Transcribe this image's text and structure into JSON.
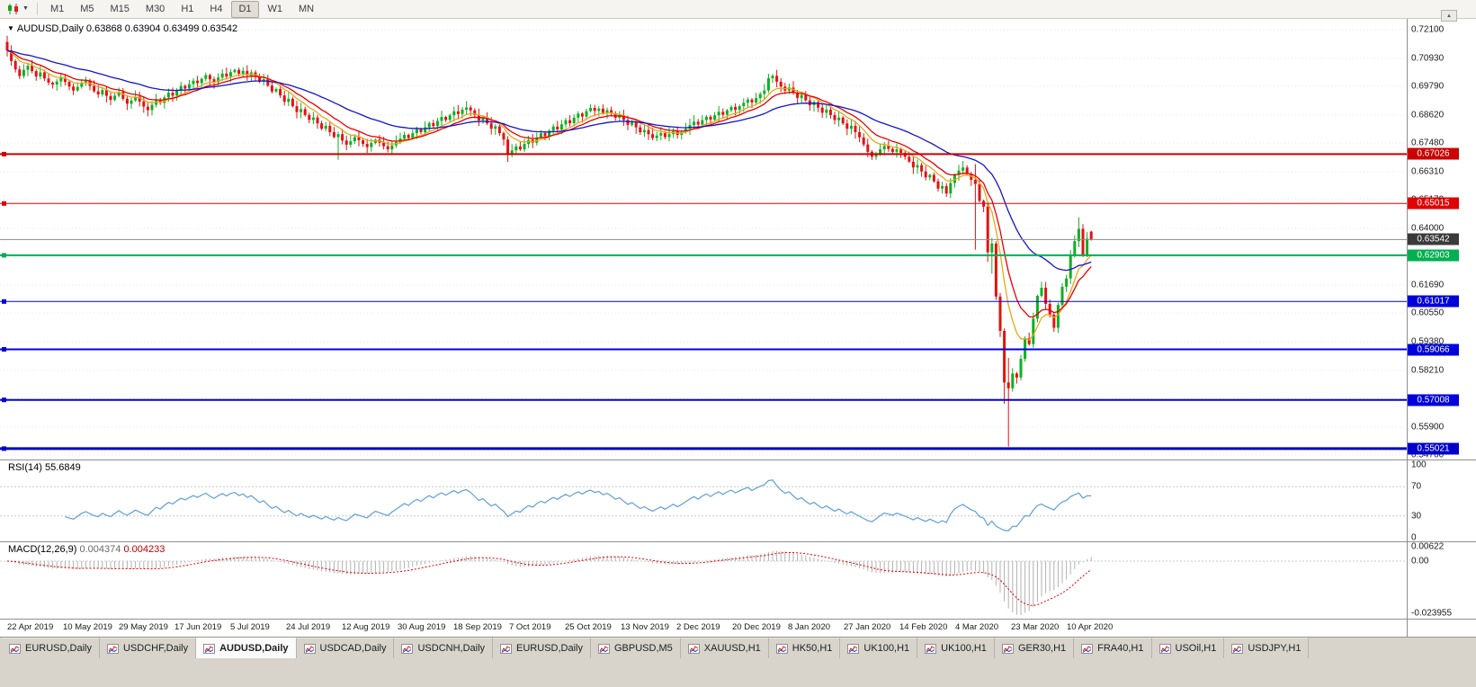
{
  "toolbar": {
    "timeframes": [
      {
        "label": "M1",
        "active": false
      },
      {
        "label": "M5",
        "active": false
      },
      {
        "label": "M15",
        "active": false
      },
      {
        "label": "M30",
        "active": false
      },
      {
        "label": "H1",
        "active": false
      },
      {
        "label": "H4",
        "active": false
      },
      {
        "label": "D1",
        "active": true
      },
      {
        "label": "W1",
        "active": false
      },
      {
        "label": "MN",
        "active": false
      }
    ]
  },
  "chart": {
    "marker": "▼",
    "title_line": "AUDUSD,Daily 0.63868 0.63904 0.63499 0.63542"
  },
  "tabs": [
    {
      "label": "EURUSD,Daily",
      "active": false
    },
    {
      "label": "USDCHF,Daily",
      "active": false
    },
    {
      "label": "AUDUSD,Daily",
      "active": true
    },
    {
      "label": "USDCAD,Daily",
      "active": false
    },
    {
      "label": "USDCNH,Daily",
      "active": false
    },
    {
      "label": "EURUSD,Daily",
      "active": false
    },
    {
      "label": "GBPUSD,M5",
      "active": false
    },
    {
      "label": "XAUUSD,H1",
      "active": false
    },
    {
      "label": "HK50,H1",
      "active": false
    },
    {
      "label": "UK100,H1",
      "active": false
    },
    {
      "label": "UK100,H1",
      "active": false
    },
    {
      "label": "GER30,H1",
      "active": false
    },
    {
      "label": "FRA40,H1",
      "active": false
    },
    {
      "label": "USOil,H1",
      "active": false
    },
    {
      "label": "USDJPY,H1",
      "active": false
    }
  ],
  "chart_data": {
    "type": "candlestick",
    "symbol": "AUDUSD",
    "timeframe": "Daily",
    "last_ohlc": {
      "open": "0.63868",
      "high": "0.63904",
      "low": "0.63499",
      "close": "0.63542"
    },
    "candle_up_color": "#0faf22",
    "candle_down_color": "#e41111",
    "first_open": 0.716,
    "closes": [
      0.7125,
      0.7082,
      0.7048,
      0.7021,
      0.7046,
      0.7063,
      0.7041,
      0.7019,
      0.7036,
      0.7011,
      0.6994,
      0.6986,
      0.6999,
      0.7014,
      0.6997,
      0.6978,
      0.6962,
      0.6977,
      0.6994,
      0.7003,
      0.6981,
      0.6959,
      0.6946,
      0.6964,
      0.694,
      0.6924,
      0.6941,
      0.6956,
      0.6928,
      0.6908,
      0.6921,
      0.6936,
      0.6917,
      0.6896,
      0.6882,
      0.6904,
      0.6926,
      0.6912,
      0.6934,
      0.6953,
      0.6941,
      0.6962,
      0.6981,
      0.697,
      0.6988,
      0.7002,
      0.6992,
      0.701,
      0.7025,
      0.7008,
      0.6996,
      0.7015,
      0.7031,
      0.7019,
      0.7037,
      0.7046,
      0.703,
      0.7042,
      0.7024,
      0.7036,
      0.7018,
      0.6998,
      0.7008,
      0.6982,
      0.6958,
      0.6968,
      0.6942,
      0.6916,
      0.6928,
      0.6898,
      0.6874,
      0.6886,
      0.6862,
      0.6842,
      0.6852,
      0.6828,
      0.6806,
      0.6818,
      0.6792,
      0.6772,
      0.6784,
      0.6758,
      0.6741,
      0.6755,
      0.6772,
      0.6759,
      0.6744,
      0.6731,
      0.6748,
      0.6762,
      0.6749,
      0.6735,
      0.6722,
      0.6738,
      0.6752,
      0.6766,
      0.6781,
      0.6768,
      0.6788,
      0.6804,
      0.6792,
      0.6812,
      0.6829,
      0.6817,
      0.6838,
      0.6854,
      0.6842,
      0.6861,
      0.6877,
      0.6866,
      0.6884,
      0.6893,
      0.6881,
      0.6862,
      0.684,
      0.6851,
      0.6828,
      0.6806,
      0.6816,
      0.6788,
      0.6762,
      0.6702,
      0.6718,
      0.6734,
      0.6722,
      0.6744,
      0.6761,
      0.6749,
      0.6771,
      0.6788,
      0.6776,
      0.6798,
      0.6815,
      0.6803,
      0.6824,
      0.6841,
      0.6829,
      0.6851,
      0.6868,
      0.6856,
      0.6878,
      0.6891,
      0.6879,
      0.6888,
      0.6871,
      0.6882,
      0.6869,
      0.6851,
      0.6861,
      0.6842,
      0.6822,
      0.6832,
      0.6812,
      0.6792,
      0.6801,
      0.6784,
      0.6768,
      0.6778,
      0.6788,
      0.6772,
      0.6784,
      0.6796,
      0.6781,
      0.6792,
      0.6806,
      0.6821,
      0.6835,
      0.6823,
      0.6841,
      0.6855,
      0.6843,
      0.6861,
      0.6875,
      0.6863,
      0.6881,
      0.6895,
      0.6883,
      0.6898,
      0.6912,
      0.6925,
      0.6913,
      0.6931,
      0.6948,
      0.6962,
      0.7012,
      0.7022,
      0.6998,
      0.6978,
      0.6962,
      0.6974,
      0.6952,
      0.6932,
      0.6944,
      0.6922,
      0.6902,
      0.6914,
      0.6892,
      0.6871,
      0.6884,
      0.6862,
      0.6841,
      0.6852,
      0.6828,
      0.6806,
      0.6818,
      0.6792,
      0.6771,
      0.6742,
      0.6712,
      0.6692,
      0.6706,
      0.6722,
      0.6736,
      0.6724,
      0.6712,
      0.6722,
      0.6708,
      0.6692,
      0.6672,
      0.6648,
      0.6658,
      0.6632,
      0.6608,
      0.6618,
      0.6592,
      0.6562,
      0.6572,
      0.6542,
      0.6585,
      0.6618,
      0.6635,
      0.6648,
      0.6622,
      0.6598,
      0.6581,
      0.6512,
      0.6488,
      0.6302,
      0.6338,
      0.6122,
      0.5982,
      0.5772,
      0.5748,
      0.5808,
      0.5792,
      0.5868,
      0.5952,
      0.5928,
      0.6032,
      0.6125,
      0.6158,
      0.6092,
      0.6048,
      0.5995,
      0.6088,
      0.6162,
      0.6196,
      0.6292,
      0.6348,
      0.6398,
      0.6292,
      0.6358,
      0.63542
    ],
    "overrides": {
      "80": {
        "l": 0.668
      },
      "121": {
        "l": 0.6671
      },
      "234": {
        "h": 0.6662,
        "l": 0.6313
      },
      "237": {
        "l": 0.6263
      },
      "238": {
        "l": 0.6215
      },
      "241": {
        "l": 0.5685
      },
      "242": {
        "h": 0.5872,
        "l": 0.551
      },
      "253": {
        "l": 0.5978
      },
      "259": {
        "h": 0.6445
      },
      "262": {
        "o": 0.63868,
        "h": 0.63904,
        "l": 0.63499,
        "c": 0.63542
      }
    },
    "moving_averages": [
      {
        "name": "fast",
        "period": 8,
        "color": "#e6a817"
      },
      {
        "name": "medium",
        "period": 13,
        "color": "#e80000"
      },
      {
        "name": "slow",
        "period": 34,
        "color": "#1414cc"
      }
    ],
    "hlines": [
      {
        "price": 0.67026,
        "label": "0.67026",
        "color": "#cc0000",
        "width": 2
      },
      {
        "price": 0.65015,
        "label": "0.65015",
        "color": "#e00000",
        "width": 1
      },
      {
        "price": 0.62903,
        "label": "0.62903",
        "color": "#00b050",
        "width": 2
      },
      {
        "price": 0.61017,
        "label": "0.61017",
        "color": "#0000dd",
        "width": 1
      },
      {
        "price": 0.59066,
        "label": "0.59066",
        "color": "#0000dd",
        "width": 2
      },
      {
        "price": 0.57008,
        "label": "0.57008",
        "color": "#0000dd",
        "width": 2
      },
      {
        "price": 0.55021,
        "label": "0.55021",
        "color": "#0000cc",
        "width": 3
      }
    ],
    "current_price": {
      "value": 0.63542,
      "label": "0.63542",
      "line_color": "#8c8c8c",
      "badge_color": "#3a3a3a"
    },
    "price_axis_labels": [
      "0.72100",
      "0.70930",
      "0.69790",
      "0.68620",
      "0.67480",
      "0.66310",
      "0.65170",
      "0.64000",
      "0.62860",
      "0.61690",
      "0.60550",
      "0.59380",
      "0.58210",
      "0.57070",
      "0.55900",
      "0.54760"
    ],
    "date_labels": [
      "22 Apr 2019",
      "10 May 2019",
      "29 May 2019",
      "17 Jun 2019",
      "5 Jul 2019",
      "24 Jul 2019",
      "12 Aug 2019",
      "30 Aug 2019",
      "18 Sep 2019",
      "7 Oct 2019",
      "25 Oct 2019",
      "13 Nov 2019",
      "2 Dec 2019",
      "20 Dec 2019",
      "8 Jan 2020",
      "27 Jan 2020",
      "14 Feb 2020",
      "4 Mar 2020",
      "23 Mar 2020",
      "10 Apr 2020"
    ],
    "rsi": {
      "name": "RSI(14)",
      "value": "55.6849",
      "period": 14,
      "color": "#5e9fd6",
      "levels": [
        100,
        70,
        30,
        0
      ],
      "level_labels": [
        "100",
        "70",
        "30",
        "0"
      ]
    },
    "macd": {
      "name": "MACD(12,26,9)",
      "main_value": "0.004374",
      "signal_value": "0.004233",
      "axis_labels": [
        "0.00622",
        "0.00",
        "-0.023955"
      ],
      "hist_color": "#b0b0b0",
      "signal_color": "#e00000"
    }
  }
}
